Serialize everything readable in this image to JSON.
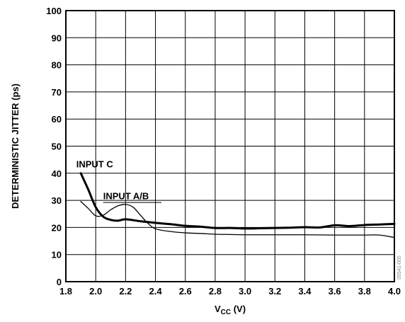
{
  "chart_data": {
    "type": "line",
    "title": "",
    "xlabel": {
      "main": "V",
      "sub": "CC",
      "unit": " (V)"
    },
    "ylabel": "DETERMINISTIC JITTER (ps)",
    "xlim": [
      1.8,
      4.0
    ],
    "ylim": [
      0,
      100
    ],
    "x_ticks": [
      "1.8",
      "2.0",
      "2.2",
      "2.4",
      "2.6",
      "2.8",
      "3.0",
      "3.2",
      "3.4",
      "3.6",
      "3.8",
      "4.0"
    ],
    "y_ticks": [
      "0",
      "10",
      "20",
      "30",
      "40",
      "50",
      "60",
      "70",
      "80",
      "90",
      "100"
    ],
    "grid": true,
    "legend": "none",
    "series": [
      {
        "name": "INPUT C",
        "x": [
          1.9,
          1.95,
          2.0,
          2.05,
          2.1,
          2.15,
          2.2,
          2.3,
          2.4,
          2.5,
          2.6,
          2.7,
          2.8,
          2.9,
          3.0,
          3.1,
          3.2,
          3.3,
          3.4,
          3.5,
          3.6,
          3.7,
          3.8,
          3.9,
          4.0
        ],
        "values": [
          40,
          34,
          27.5,
          24,
          22.8,
          22.5,
          23,
          22.3,
          21.7,
          21.2,
          20.6,
          20.3,
          19.8,
          19.8,
          19.6,
          19.7,
          19.8,
          19.9,
          20.1,
          20,
          20.8,
          20.5,
          20.9,
          21.1,
          21.3
        ],
        "color": "#000000",
        "stroke_width": 3
      },
      {
        "name": "INPUT A/B",
        "x": [
          1.9,
          1.95,
          2.0,
          2.05,
          2.1,
          2.15,
          2.2,
          2.25,
          2.3,
          2.35,
          2.4,
          2.5,
          2.6,
          2.7,
          2.8,
          2.9,
          3.0,
          3.2,
          3.4,
          3.6,
          3.8,
          3.9,
          4.0
        ],
        "values": [
          29.6,
          27,
          24.3,
          24.5,
          26.5,
          28,
          28.5,
          27.5,
          24.5,
          21.5,
          19.5,
          18.5,
          18,
          17.8,
          17.5,
          17.4,
          17.3,
          17.3,
          17.3,
          17.2,
          17.2,
          17.2,
          16.3
        ],
        "color": "#000000",
        "stroke_width": 1.3
      }
    ],
    "annotations": [
      {
        "text": "INPUT C",
        "series": "INPUT C"
      },
      {
        "text": "INPUT A/B",
        "series": "INPUT A/B"
      }
    ]
  },
  "figure_code": "05541-005"
}
